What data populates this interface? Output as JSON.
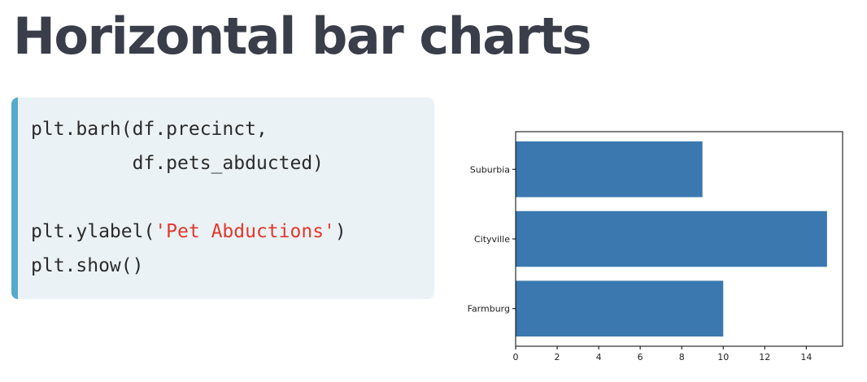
{
  "slide": {
    "title": "Horizontal bar charts"
  },
  "code": {
    "line1": "plt.barh(df.precinct,",
    "line2": "         df.pets_abducted)",
    "line3": "",
    "line4_pre": "plt.ylabel(",
    "line4_str": "'Pet Abductions'",
    "line4_post": ")",
    "line5": "plt.show()"
  },
  "colors": {
    "title": "#3a3d4a",
    "code_background": "#ebf2f6",
    "code_accent": "#54aacd",
    "code_string": "#e0392d",
    "bar": "#3a78af"
  },
  "chart_data": {
    "type": "bar",
    "orientation": "horizontal",
    "categories": [
      "Farmburg",
      "Cityville",
      "Suburbia"
    ],
    "values": [
      10,
      15,
      9
    ],
    "xlim": [
      0,
      15.75
    ],
    "xticks": [
      0,
      2,
      4,
      6,
      8,
      10,
      12,
      14
    ],
    "xlabel": "",
    "ylabel": "",
    "grid": false,
    "legend": "none"
  }
}
